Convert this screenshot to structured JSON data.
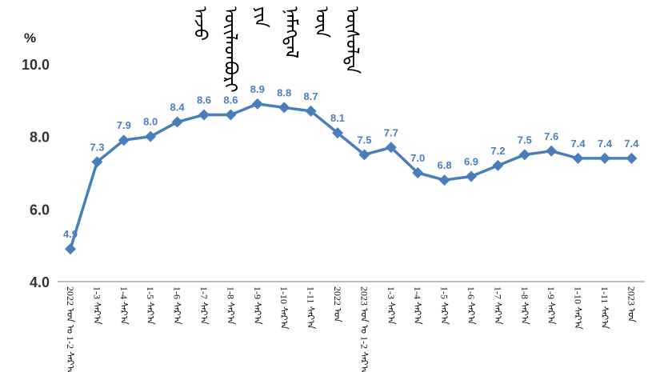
{
  "chart_data": {
    "type": "line",
    "title": "ᠠᠵᠤ ᠦᠢᠯᠡᠳᠪᠦᠷᠢ ᠶᠢᠨ ᠨᠡᠮᠡᠭᠳᠡᠯ ᠦᠨ ᠥᠰᠦᠯᠲᠡ",
    "ylabel": "%",
    "ylim": [
      4.0,
      10.0
    ],
    "yticks": [
      "4.0",
      "6.0",
      "8.0",
      "10.0"
    ],
    "grid": false,
    "color": "#4a7ebb",
    "label_color": "#4a7ebb",
    "categories": [
      "2022 ᠣᠨ ᠤ 1-2 ᠰᠠᠷ᠎ᠠ",
      "1-3 ᠰᠠᠷ᠎ᠠ",
      "1-4 ᠰᠠᠷ᠎ᠠ",
      "1-5 ᠰᠠᠷ᠎ᠠ",
      "1-6 ᠰᠠᠷ᠎ᠠ",
      "1-7 ᠰᠠᠷ᠎ᠠ",
      "1-8 ᠰᠠᠷ᠎ᠠ",
      "1-9 ᠰᠠᠷ᠎ᠠ",
      "1-10 ᠰᠠᠷ᠎ᠠ",
      "1-11 ᠰᠠᠷ᠎ᠠ",
      "2022 ᠣᠨ",
      "2023 ᠣᠨ ᠤ 1-2 ᠰᠠᠷ᠎ᠠ",
      "1-3 ᠰᠠᠷ᠎ᠠ",
      "1-4 ᠰᠠᠷ᠎ᠠ",
      "1-5 ᠰᠠᠷ᠎ᠠ",
      "1-6 ᠰᠠᠷ᠎ᠠ",
      "1-7 ᠰᠠᠷ᠎ᠠ",
      "1-8 ᠰᠠᠷ᠎ᠠ",
      "1-9 ᠰᠠᠷ᠎ᠠ",
      "1-10 ᠰᠠᠷ᠎ᠠ",
      "1-11 ᠰᠠᠷ᠎ᠠ",
      "2023 ᠣᠨ"
    ],
    "values": [
      4.9,
      7.3,
      7.9,
      8.0,
      8.4,
      8.6,
      8.6,
      8.9,
      8.8,
      8.7,
      8.1,
      7.5,
      7.7,
      7.0,
      6.8,
      6.9,
      7.2,
      7.5,
      7.6,
      7.4,
      7.4,
      7.4
    ]
  }
}
